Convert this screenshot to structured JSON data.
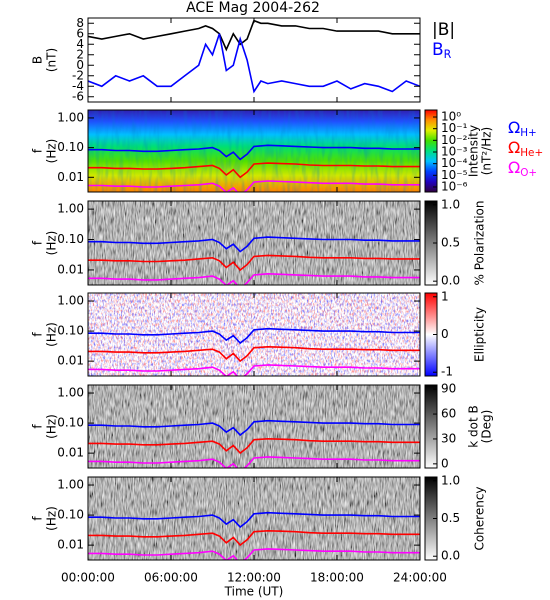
{
  "chart_data": [
    {
      "type": "line",
      "title": "ACE Mag 2004-262",
      "y_label": [
        "B",
        "(nT)"
      ],
      "x": [
        0,
        1,
        2,
        3,
        4,
        5,
        6,
        7,
        8,
        8.5,
        9,
        9.5,
        10,
        10.5,
        11,
        11.5,
        12,
        12.5,
        13,
        14,
        15,
        16,
        17,
        18,
        19,
        20,
        21,
        22,
        23,
        24
      ],
      "ylim": [
        -7,
        9
      ],
      "yticks": [
        8,
        6,
        4,
        2,
        0,
        -2,
        -4,
        -6
      ],
      "series": [
        {
          "name": "|B|",
          "color": "#000000",
          "values": [
            5.5,
            5,
            5.5,
            6,
            5,
            5.5,
            6,
            6.5,
            7,
            7.5,
            7,
            6,
            3,
            6,
            4,
            5,
            8.5,
            8,
            8,
            7.5,
            7.5,
            7,
            7,
            6.5,
            6.5,
            6.5,
            6.5,
            6,
            6,
            6
          ]
        },
        {
          "name": "B",
          "subscript": "R",
          "color": "#0000ff",
          "values": [
            -3,
            -4,
            -2,
            -3,
            -2,
            -4,
            -4,
            -2,
            0,
            4,
            2,
            6,
            -1,
            0,
            5,
            1,
            -5,
            -3,
            -3.5,
            -3,
            -3.5,
            -4,
            -4,
            -3,
            -4.5,
            -3.5,
            -4,
            -5,
            -3,
            -4
          ]
        }
      ]
    },
    {
      "type": "spectrogram",
      "texture": "intensity",
      "y_label": [
        "f",
        "(Hz)"
      ],
      "y_log": true,
      "ylim": [
        0.0032,
        1.85
      ],
      "yticks": [
        {
          "value": 1,
          "label": "1.00"
        },
        {
          "value": 0.1,
          "label": "0.10"
        },
        0.01
      ],
      "colorbar": {
        "label": [
          "Intensity",
          "(nT²/Hz)"
        ],
        "log": true,
        "lim": [
          3.7e-07,
          4
        ],
        "ticks": [
          {
            "value": 1,
            "label": "10⁰"
          },
          {
            "value": 0.1,
            "label": "10⁻¹"
          },
          {
            "value": 0.01,
            "label": "10⁻²"
          },
          {
            "value": 0.001,
            "label": "10⁻³"
          },
          {
            "value": 0.0001,
            "label": "10⁻⁴"
          },
          {
            "value": 1e-05,
            "label": "10⁻⁵"
          },
          {
            "value": 1e-06,
            "label": "10⁻⁶"
          }
        ],
        "colors": [
          "#300040",
          "#2000c0",
          "#0040ff",
          "#00c0ff",
          "#00e080",
          "#40e000",
          "#e0f000",
          "#ff9000",
          "#ff0000"
        ]
      },
      "x": [
        0,
        1,
        2,
        3,
        4,
        5,
        6,
        7,
        8,
        9,
        9.5,
        10,
        10.5,
        11,
        11.5,
        12,
        13,
        14,
        15,
        16,
        17,
        18,
        19,
        20,
        21,
        22,
        23,
        24
      ],
      "series": [
        {
          "name": "Ω",
          "subscript": "H+",
          "color": "#0000ff",
          "values": [
            0.085,
            0.085,
            0.08,
            0.08,
            0.075,
            0.075,
            0.08,
            0.085,
            0.09,
            0.1,
            0.08,
            0.05,
            0.07,
            0.04,
            0.06,
            0.11,
            0.12,
            0.115,
            0.11,
            0.105,
            0.1,
            0.1,
            0.1,
            0.095,
            0.095,
            0.09,
            0.09,
            0.09
          ]
        },
        {
          "name": "Ω",
          "subscript": "He+",
          "color": "#ff0000",
          "values": [
            0.021,
            0.021,
            0.02,
            0.02,
            0.019,
            0.019,
            0.02,
            0.021,
            0.023,
            0.025,
            0.02,
            0.012,
            0.018,
            0.01,
            0.015,
            0.028,
            0.03,
            0.029,
            0.028,
            0.026,
            0.025,
            0.025,
            0.025,
            0.024,
            0.024,
            0.023,
            0.023,
            0.023
          ]
        },
        {
          "name": "Ω",
          "subscript": "O+",
          "color": "#ff00ff",
          "values": [
            0.0053,
            0.0053,
            0.005,
            0.005,
            0.0047,
            0.0047,
            0.005,
            0.0053,
            0.0056,
            0.0063,
            0.005,
            0.0031,
            0.0044,
            0.0025,
            0.0038,
            0.0069,
            0.0075,
            0.0072,
            0.0069,
            0.0066,
            0.0063,
            0.0063,
            0.0063,
            0.0059,
            0.0059,
            0.0056,
            0.0056,
            0.0056
          ]
        }
      ]
    },
    {
      "type": "spectrogram",
      "texture": "gray",
      "y_label": [
        "f",
        "(Hz)"
      ],
      "y_log": true,
      "ylim": [
        0.0032,
        1.85
      ],
      "yticks": [
        {
          "value": 1,
          "label": "1.00"
        },
        {
          "value": 0.1,
          "label": "0.10"
        },
        0.01
      ],
      "colorbar": {
        "label": [
          "% Polarization"
        ],
        "lim": [
          -0.05,
          1.05
        ],
        "ticks": [
          {
            "value": 1,
            "label": "1.0"
          },
          0.5,
          {
            "value": 0,
            "label": "0.0"
          }
        ],
        "colors": [
          "#ffffff",
          "#000000"
        ]
      }
    },
    {
      "type": "spectrogram",
      "texture": "ellipticity",
      "y_label": [
        "f",
        "(Hz)"
      ],
      "y_log": true,
      "ylim": [
        0.0032,
        1.85
      ],
      "yticks": [
        {
          "value": 1,
          "label": "1.00"
        },
        {
          "value": 0.1,
          "label": "0.10"
        },
        0.01
      ],
      "colorbar": {
        "label": [
          "Ellipticity"
        ],
        "lim": [
          -1.1,
          1.1
        ],
        "ticks": [
          1,
          0,
          -1
        ],
        "colors": [
          "#0000ff",
          "#ffffff",
          "#ff0000"
        ]
      }
    },
    {
      "type": "spectrogram",
      "texture": "gray",
      "y_label": [
        "f",
        "(Hz)"
      ],
      "y_log": true,
      "ylim": [
        0.0032,
        1.85
      ],
      "yticks": [
        {
          "value": 1,
          "label": "1.00"
        },
        {
          "value": 0.1,
          "label": "0.10"
        },
        0.01
      ],
      "colorbar": {
        "label": [
          "k dot B",
          "(Deg)"
        ],
        "lim": [
          -5,
          95
        ],
        "ticks": [
          90,
          60,
          30,
          0
        ],
        "colors": [
          "#ffffff",
          "#000000"
        ]
      }
    },
    {
      "type": "spectrogram",
      "texture": "gray",
      "y_label": [
        "f",
        "(Hz)"
      ],
      "y_log": true,
      "ylim": [
        0.0032,
        1.85
      ],
      "yticks": [
        {
          "value": 1,
          "label": "1.00"
        },
        {
          "value": 0.1,
          "label": "0.10"
        },
        0.01
      ],
      "colorbar": {
        "label": [
          "Coherency"
        ],
        "lim": [
          -0.05,
          1.05
        ],
        "ticks": [
          {
            "value": 1,
            "label": "1.0"
          },
          0.5,
          {
            "value": 0,
            "label": "0.0"
          }
        ],
        "colors": [
          "#ffffff",
          "#000000"
        ]
      },
      "xlim": [
        0,
        24
      ],
      "x_label": "Time (UT)",
      "xticks": [
        {
          "value": 0,
          "label": "00:00:00"
        },
        {
          "value": 6,
          "label": "06:00:00"
        },
        {
          "value": 12,
          "label": "12:00:00"
        },
        {
          "value": 18,
          "label": "18:00:00"
        },
        {
          "value": 24,
          "label": "24:00:00"
        }
      ]
    }
  ]
}
